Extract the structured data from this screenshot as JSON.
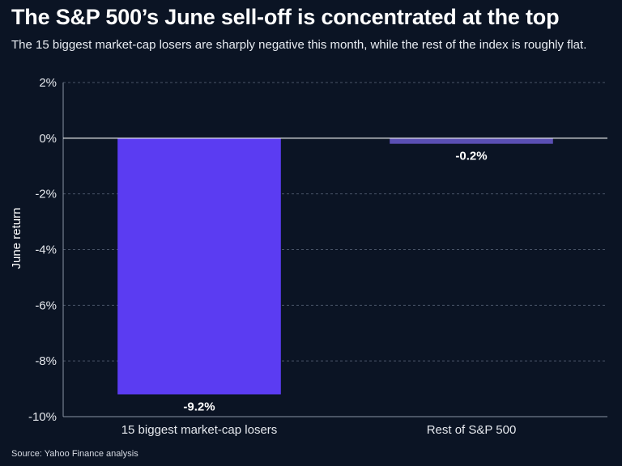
{
  "header": {
    "title": "The S&P 500’s June sell-off is concentrated at the top",
    "subtitle": "The 15 biggest market-cap losers are sharply negative this month, while the rest of the index is roughly flat."
  },
  "footer": {
    "source": "Source: Yahoo Finance analysis"
  },
  "colors": {
    "background": "#0b1424",
    "bar_losers": "#5b3cf2",
    "bar_rest": "#5a4fb3",
    "grid": "#4a5568",
    "zero_line": "#ffffff"
  },
  "chart_data": {
    "type": "bar",
    "categories": [
      "15 biggest market-cap losers",
      "Rest of S&P 500"
    ],
    "values": [
      -9.2,
      -0.2
    ],
    "data_labels": [
      "-9.2%",
      "-0.2%"
    ],
    "title": "The S&P 500’s June sell-off is concentrated at the top",
    "subtitle": "The 15 biggest market-cap losers are sharply negative this month, while the rest of the index is roughly flat.",
    "xlabel": "",
    "ylabel": "June return",
    "ylim": [
      -10,
      2
    ],
    "yticks": [
      2,
      0,
      -2,
      -4,
      -6,
      -8,
      -10
    ],
    "ytick_labels": [
      "2%",
      "0%",
      "-2%",
      "-4%",
      "-6%",
      "-8%",
      "-10%"
    ],
    "grid": true,
    "grid_style": "dashed",
    "legend": "none"
  }
}
